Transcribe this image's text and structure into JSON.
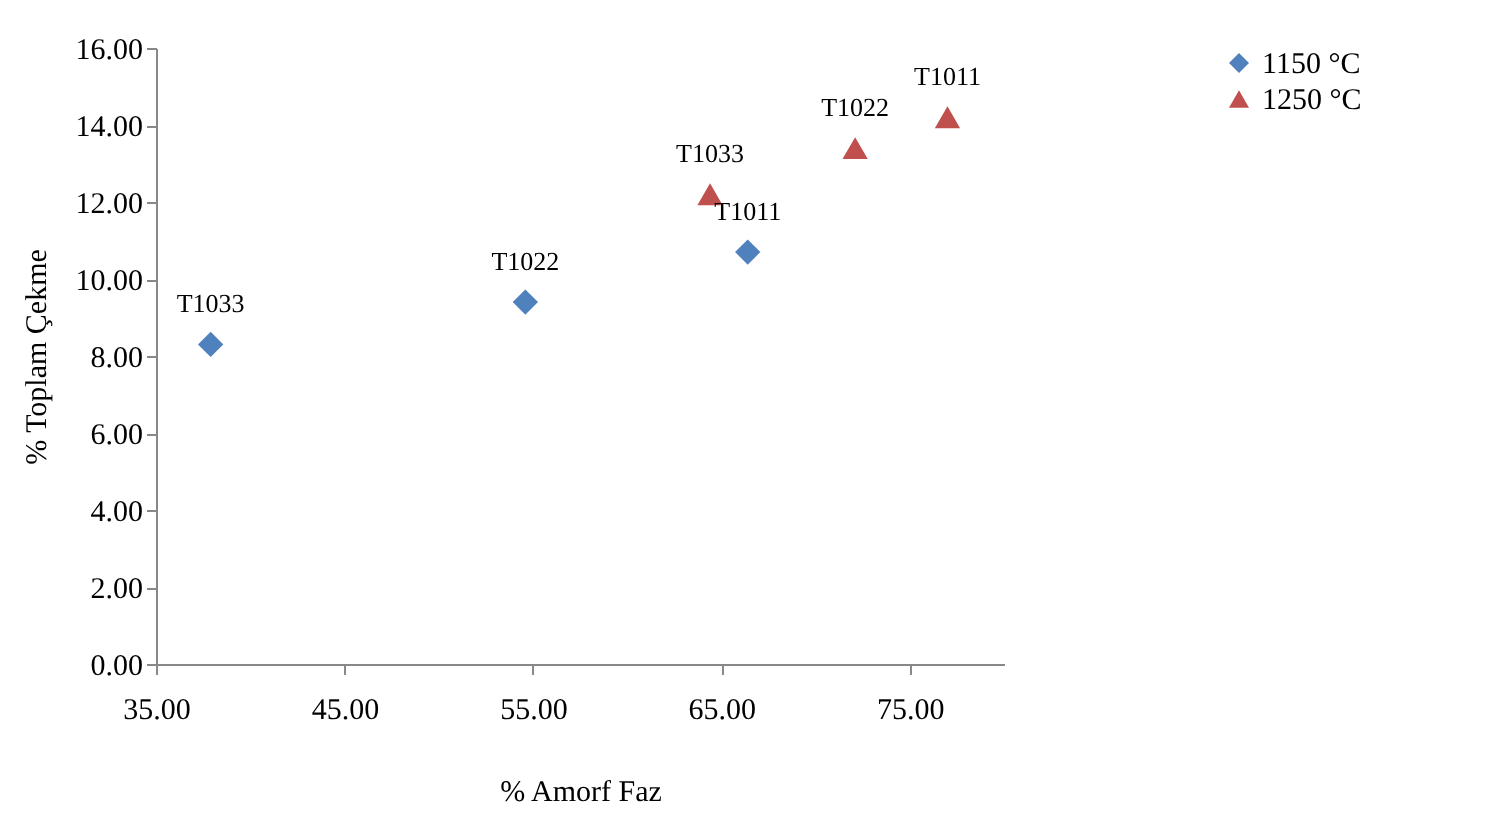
{
  "chart_data": {
    "type": "scatter",
    "xlabel": "% Amorf Faz",
    "ylabel": "% Toplam Çekme",
    "xlim": [
      35,
      80
    ],
    "xticks": [
      {
        "value": 35,
        "label": "35.00"
      },
      {
        "value": 45,
        "label": "45.00"
      },
      {
        "value": 55,
        "label": "55.00"
      },
      {
        "value": 65,
        "label": "65.00"
      },
      {
        "value": 75,
        "label": "75.00"
      }
    ],
    "ylim": [
      0,
      16
    ],
    "yticks": [
      {
        "value": 0,
        "label": "0.00"
      },
      {
        "value": 2,
        "label": "2.00"
      },
      {
        "value": 4,
        "label": "4.00"
      },
      {
        "value": 6,
        "label": "6.00"
      },
      {
        "value": 8,
        "label": "8.00"
      },
      {
        "value": 10,
        "label": "10.00"
      },
      {
        "value": 12,
        "label": "12.00"
      },
      {
        "value": 14,
        "label": "14.00"
      },
      {
        "value": 16,
        "label": "16.00"
      }
    ],
    "grid": false,
    "legend": "right",
    "series": [
      {
        "name": "1150 °C",
        "color": "#4f81bd",
        "marker": "diamond",
        "x": [
          37.9,
          54.6,
          66.4
        ],
        "values": [
          8.3,
          9.4,
          10.7
        ]
      },
      {
        "name": "1250 °C",
        "color": "#c0504d",
        "marker": "triangle",
        "x": [
          64.4,
          72.1,
          77.0
        ],
        "values": [
          12.2,
          13.4,
          14.2
        ]
      }
    ],
    "annotations": [
      {
        "text": "T1033",
        "x": 37.9,
        "y": 8.3
      },
      {
        "text": "T1022",
        "x": 54.6,
        "y": 9.4
      },
      {
        "text": "T1011",
        "x": 66.4,
        "y": 10.7
      },
      {
        "text": "T1033",
        "x": 64.4,
        "y": 12.2
      },
      {
        "text": "T1022",
        "x": 72.1,
        "y": 13.4
      },
      {
        "text": "T1011",
        "x": 77.0,
        "y": 14.2
      }
    ]
  }
}
